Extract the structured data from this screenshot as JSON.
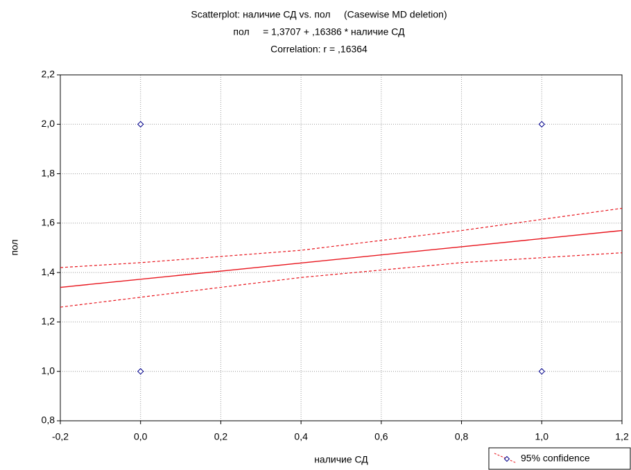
{
  "chart_data": {
    "type": "scatter",
    "title": "Scatterplot: наличие СД vs. пол     (Casewise MD deletion)",
    "subtitle": "пол     = 1,3707 + ,16386 * наличие СД",
    "annotation": "Correlation: r = ,16364",
    "x_label": "наличие СД",
    "y_label": "пол",
    "xlim": [
      -0.2,
      1.2
    ],
    "ylim": [
      0.8,
      2.2
    ],
    "xticks": [
      {
        "value": -0.2,
        "label": "-0,2"
      },
      {
        "value": 0,
        "label": "0,0"
      },
      {
        "value": 0.2,
        "label": "0,2"
      },
      {
        "value": 0.4,
        "label": "0,4"
      },
      {
        "value": 0.6,
        "label": "0,6"
      },
      {
        "value": 0.8,
        "label": "0,8"
      },
      {
        "value": 1.0,
        "label": "1,0"
      },
      {
        "value": 1.2,
        "label": "1,2"
      }
    ],
    "yticks": [
      {
        "value": 0.8,
        "label": "0,8"
      },
      {
        "value": 1.0,
        "label": "1,0"
      },
      {
        "value": 1.2,
        "label": "1,2"
      },
      {
        "value": 1.4,
        "label": "1,4"
      },
      {
        "value": 1.6,
        "label": "1,6"
      },
      {
        "value": 1.8,
        "label": "1,8"
      },
      {
        "value": 2.0,
        "label": "2,0"
      },
      {
        "value": 2.2,
        "label": "2,2"
      }
    ],
    "grid": true,
    "points": {
      "color": "#00008b",
      "x": [
        0,
        0,
        1,
        1
      ],
      "y": [
        1,
        2,
        1,
        2
      ]
    },
    "fit": {
      "color": "#e8141c",
      "x": [
        -0.2,
        1.2
      ],
      "y": [
        1.34,
        1.57
      ]
    },
    "confidence": {
      "name": "95% confidence",
      "color": "#e8141c",
      "x": [
        -0.2,
        0,
        0.4,
        0.8,
        1.2
      ],
      "upper": [
        1.42,
        1.44,
        1.49,
        1.57,
        1.66
      ],
      "lower": [
        1.26,
        1.3,
        1.38,
        1.44,
        1.48
      ]
    },
    "legend": "bottom-right"
  }
}
